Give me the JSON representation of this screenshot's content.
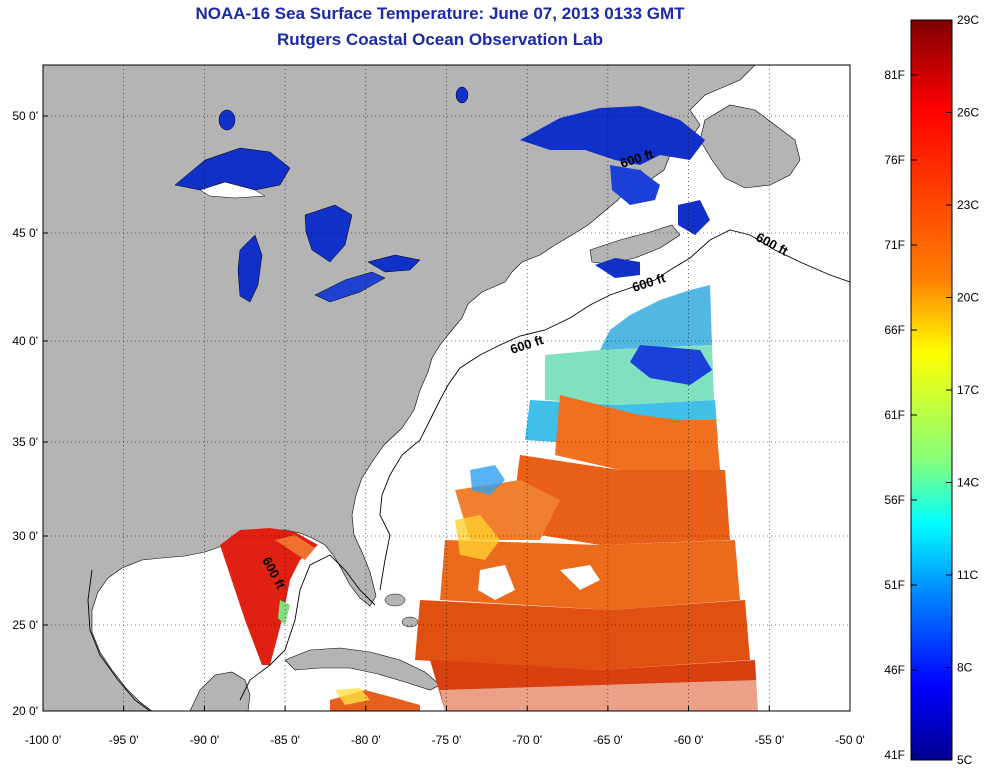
{
  "header": {
    "title": "NOAA-16 Sea Surface Temperature:  June 07, 2013 0133 GMT",
    "subtitle": "Rutgers Coastal Ocean Observation Lab"
  },
  "map": {
    "lon_ticks": [
      "-100 0'",
      "-95 0'",
      "-90 0'",
      "-85 0'",
      "-80 0'",
      "-75 0'",
      "-70 0'",
      "-65 0'",
      "-60 0'",
      "-55 0'",
      "-50 0'"
    ],
    "lat_ticks": [
      "50 0'",
      "45 0'",
      "40 0'",
      "35 0'",
      "30 0'",
      "25 0'",
      "20 0'"
    ],
    "contour_labels": [
      "600 ft",
      "600 ft",
      "600 ft",
      "600 ft",
      "600 ft"
    ],
    "colors": {
      "land": "#b4b4b4",
      "ocean_nodata": "#ffffff"
    }
  },
  "colorbar": {
    "celsius_labels": [
      "29C",
      "26C",
      "23C",
      "20C",
      "17C",
      "14C",
      "11C",
      "8C",
      "5C"
    ],
    "fahrenheit_labels": [
      "81F",
      "76F",
      "71F",
      "66F",
      "61F",
      "56F",
      "51F",
      "46F",
      "41F"
    ],
    "colors": [
      "#7f0000",
      "#ff0000",
      "#ff8000",
      "#ffff00",
      "#80ff80",
      "#00ffff",
      "#0080ff",
      "#0000ff",
      "#00008f"
    ]
  }
}
